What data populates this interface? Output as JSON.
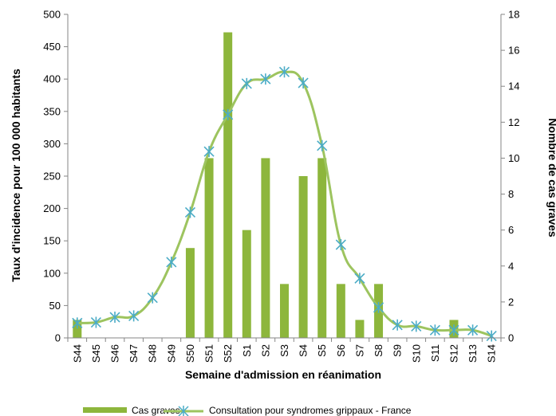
{
  "chart_data": {
    "type": "bar",
    "categories": [
      "S44",
      "S45",
      "S46",
      "S47",
      "S48",
      "S49",
      "S50",
      "S51",
      "S52",
      "S1",
      "S2",
      "S3",
      "S4",
      "S5",
      "S6",
      "S7",
      "S8",
      "S9",
      "S10",
      "S11",
      "S12",
      "S13",
      "S14"
    ],
    "series": [
      {
        "name": "Cas graves",
        "type": "bar",
        "axis": "right",
        "color": "#8DB63C",
        "values": [
          1,
          0,
          0,
          0,
          0,
          0,
          5,
          10,
          17,
          6,
          10,
          3,
          9,
          10,
          3,
          1,
          3,
          0,
          0,
          0,
          1,
          0,
          0
        ]
      },
      {
        "name": "Consultation pour syndromes grippaux - France",
        "type": "line",
        "axis": "left",
        "color": "#9DC45F",
        "marker_color": "#4BACC6",
        "values": [
          23,
          24,
          32,
          34,
          62,
          117,
          194,
          288,
          345,
          393,
          400,
          411,
          394,
          297,
          144,
          92,
          47,
          20,
          18,
          12,
          12,
          12,
          3
        ]
      }
    ],
    "xlabel": "Semaine d'admission en réanimation",
    "ylabel": "Taux d'incidence pour 100 000 habitants",
    "y2label": "Nombre de cas graves",
    "ylim": [
      0,
      500
    ],
    "yticks": [
      0,
      50,
      100,
      150,
      200,
      250,
      300,
      350,
      400,
      450,
      500
    ],
    "y2lim": [
      0,
      18
    ],
    "y2ticks": [
      0,
      2,
      4,
      6,
      8,
      10,
      12,
      14,
      16,
      18
    ],
    "grid": false,
    "legend_position": "bottom"
  }
}
